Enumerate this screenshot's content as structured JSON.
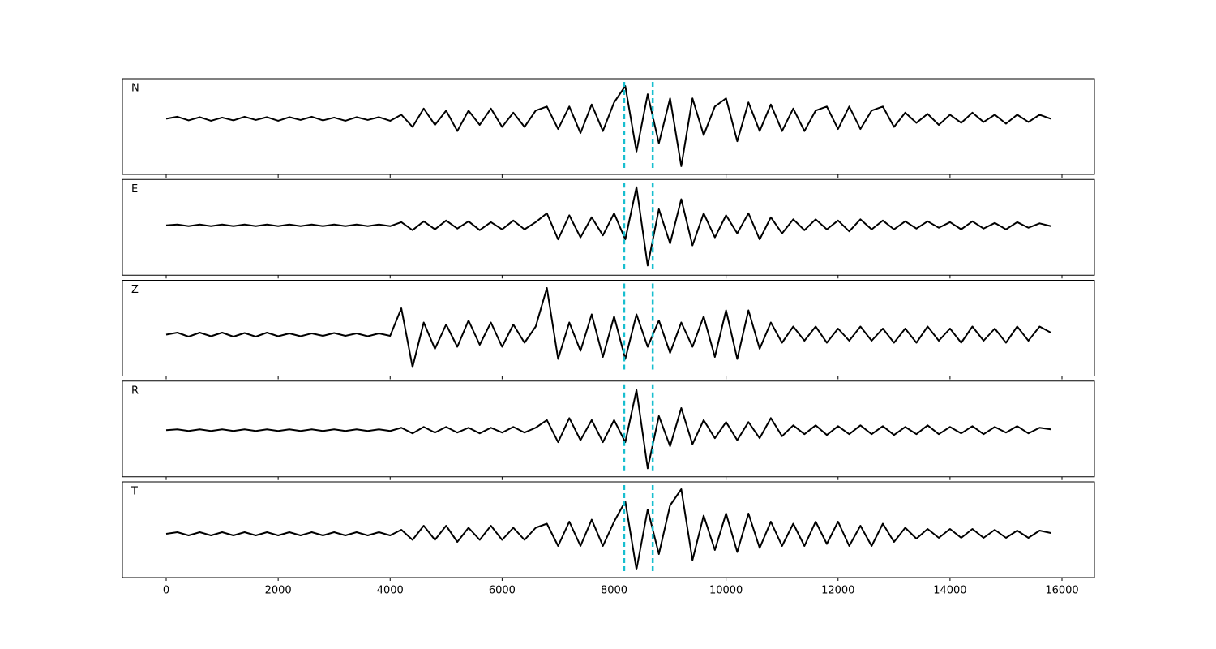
{
  "chart_data": {
    "type": "line",
    "x": [
      0,
      200,
      400,
      600,
      800,
      1000,
      1200,
      1400,
      1600,
      1800,
      2000,
      2200,
      2400,
      2600,
      2800,
      3000,
      3200,
      3400,
      3600,
      3800,
      4000,
      4200,
      4400,
      4600,
      4800,
      5000,
      5200,
      5400,
      5600,
      5800,
      6000,
      6200,
      6400,
      6600,
      6800,
      7000,
      7200,
      7400,
      7600,
      7800,
      8000,
      8200,
      8400,
      8600,
      8800,
      9000,
      9200,
      9400,
      9600,
      9800,
      10000,
      10200,
      10400,
      10600,
      10800,
      11000,
      11200,
      11400,
      11600,
      11800,
      12000,
      12200,
      12400,
      12600,
      12800,
      13000,
      13200,
      13400,
      13600,
      13800,
      14000,
      14200,
      14400,
      14600,
      14800,
      15000,
      15200,
      15400,
      15600,
      15800
    ],
    "xlim": [
      -782,
      16579
    ],
    "xticks": [
      0,
      2000,
      4000,
      6000,
      8000,
      10000,
      12000,
      14000,
      16000
    ],
    "vlines": [
      8180,
      8690
    ],
    "vline_color": "#17becf",
    "series": [
      {
        "name": "N",
        "color": "#000000",
        "ylim": [
          -1.36,
          0.98
        ],
        "values": [
          0,
          0.05,
          -0.04,
          0.04,
          -0.05,
          0.03,
          -0.04,
          0.05,
          -0.03,
          0.04,
          -0.05,
          0.04,
          -0.03,
          0.05,
          -0.04,
          0.03,
          -0.05,
          0.04,
          -0.03,
          0.04,
          -0.05,
          0.1,
          -0.2,
          0.25,
          -0.15,
          0.2,
          -0.3,
          0.2,
          -0.15,
          0.25,
          -0.2,
          0.15,
          -0.2,
          0.2,
          0.3,
          -0.25,
          0.3,
          -0.35,
          0.35,
          -0.3,
          0.4,
          0.8,
          -0.8,
          0.6,
          -0.6,
          0.5,
          -1.16,
          0.5,
          -0.4,
          0.3,
          0.5,
          -0.55,
          0.4,
          -0.3,
          0.35,
          -0.3,
          0.25,
          -0.3,
          0.2,
          0.3,
          -0.25,
          0.3,
          -0.25,
          0.2,
          0.3,
          -0.2,
          0.15,
          -0.1,
          0.12,
          -0.15,
          0.1,
          -0.1,
          0.15,
          -0.08,
          0.1,
          -0.12,
          0.1,
          -0.08,
          0.1,
          0
        ]
      },
      {
        "name": "E",
        "color": "#000000",
        "ylim": [
          -1.24,
          1.14
        ],
        "values": [
          0,
          0.02,
          -0.02,
          0.02,
          -0.02,
          0.02,
          -0.02,
          0.02,
          -0.02,
          0.02,
          -0.02,
          0.02,
          -0.02,
          0.02,
          -0.02,
          0.02,
          -0.02,
          0.02,
          -0.02,
          0.02,
          -0.02,
          0.08,
          -0.12,
          0.1,
          -0.1,
          0.12,
          -0.08,
          0.1,
          -0.12,
          0.08,
          -0.1,
          0.12,
          -0.1,
          0.08,
          0.3,
          -0.35,
          0.25,
          -0.3,
          0.2,
          -0.25,
          0.3,
          -0.35,
          0.95,
          -1.0,
          0.4,
          -0.45,
          0.65,
          -0.5,
          0.3,
          -0.3,
          0.25,
          -0.2,
          0.3,
          -0.35,
          0.2,
          -0.2,
          0.15,
          -0.12,
          0.15,
          -0.1,
          0.12,
          -0.15,
          0.15,
          -0.1,
          0.12,
          -0.1,
          0.1,
          -0.08,
          0.1,
          -0.06,
          0.08,
          -0.1,
          0.1,
          -0.08,
          0.06,
          -0.1,
          0.08,
          -0.06,
          0.05,
          -0.02
        ]
      },
      {
        "name": "Z",
        "color": "#000000",
        "ylim": [
          -1.02,
          1.34
        ],
        "values": [
          0,
          0.05,
          -0.05,
          0.05,
          -0.04,
          0.05,
          -0.05,
          0.04,
          -0.05,
          0.05,
          -0.04,
          0.03,
          -0.04,
          0.03,
          -0.03,
          0.04,
          -0.03,
          0.03,
          -0.04,
          0.03,
          -0.03,
          0.65,
          -0.8,
          0.3,
          -0.35,
          0.25,
          -0.3,
          0.35,
          -0.25,
          0.3,
          -0.3,
          0.25,
          -0.2,
          0.2,
          1.15,
          -0.6,
          0.3,
          -0.4,
          0.5,
          -0.55,
          0.45,
          -0.6,
          0.5,
          -0.3,
          0.35,
          -0.45,
          0.3,
          -0.3,
          0.45,
          -0.55,
          0.6,
          -0.6,
          0.6,
          -0.35,
          0.3,
          -0.2,
          0.2,
          -0.15,
          0.2,
          -0.2,
          0.15,
          -0.15,
          0.2,
          -0.15,
          0.15,
          -0.2,
          0.15,
          -0.2,
          0.2,
          -0.15,
          0.15,
          -0.2,
          0.2,
          -0.15,
          0.15,
          -0.2,
          0.2,
          -0.15,
          0.2,
          0.05
        ]
      },
      {
        "name": "R",
        "color": "#000000",
        "ylim": [
          -1.16,
          1.22
        ],
        "values": [
          0,
          0.02,
          -0.02,
          0.02,
          -0.02,
          0.02,
          -0.02,
          0.02,
          -0.02,
          0.02,
          -0.02,
          0.02,
          -0.02,
          0.02,
          -0.02,
          0.02,
          -0.02,
          0.02,
          -0.02,
          0.02,
          -0.02,
          0.06,
          -0.08,
          0.08,
          -0.06,
          0.08,
          -0.06,
          0.06,
          -0.08,
          0.06,
          -0.06,
          0.08,
          -0.06,
          0.06,
          0.25,
          -0.3,
          0.3,
          -0.25,
          0.25,
          -0.3,
          0.25,
          -0.3,
          1.0,
          -0.95,
          0.35,
          -0.4,
          0.55,
          -0.35,
          0.25,
          -0.2,
          0.2,
          -0.25,
          0.2,
          -0.2,
          0.3,
          -0.15,
          0.12,
          -0.1,
          0.12,
          -0.12,
          0.1,
          -0.1,
          0.12,
          -0.1,
          0.1,
          -0.12,
          0.08,
          -0.1,
          0.12,
          -0.1,
          0.08,
          -0.08,
          0.1,
          -0.1,
          0.08,
          -0.06,
          0.1,
          -0.08,
          0.06,
          0.02
        ]
      },
      {
        "name": "T",
        "color": "#000000",
        "ylim": [
          -1.08,
          1.28
        ],
        "values": [
          0,
          0.04,
          -0.04,
          0.04,
          -0.04,
          0.04,
          -0.04,
          0.04,
          -0.04,
          0.04,
          -0.04,
          0.04,
          -0.04,
          0.04,
          -0.04,
          0.04,
          -0.04,
          0.04,
          -0.04,
          0.04,
          -0.04,
          0.1,
          -0.15,
          0.2,
          -0.15,
          0.2,
          -0.2,
          0.15,
          -0.15,
          0.2,
          -0.15,
          0.15,
          -0.15,
          0.15,
          0.25,
          -0.3,
          0.3,
          -0.3,
          0.35,
          -0.3,
          0.3,
          0.8,
          -0.88,
          0.6,
          -0.5,
          0.7,
          1.1,
          -0.65,
          0.45,
          -0.4,
          0.5,
          -0.45,
          0.5,
          -0.35,
          0.3,
          -0.3,
          0.25,
          -0.3,
          0.3,
          -0.25,
          0.3,
          -0.3,
          0.2,
          -0.3,
          0.25,
          -0.2,
          0.15,
          -0.12,
          0.12,
          -0.1,
          0.12,
          -0.1,
          0.12,
          -0.1,
          0.1,
          -0.1,
          0.08,
          -0.1,
          0.08,
          0.02
        ]
      }
    ]
  }
}
